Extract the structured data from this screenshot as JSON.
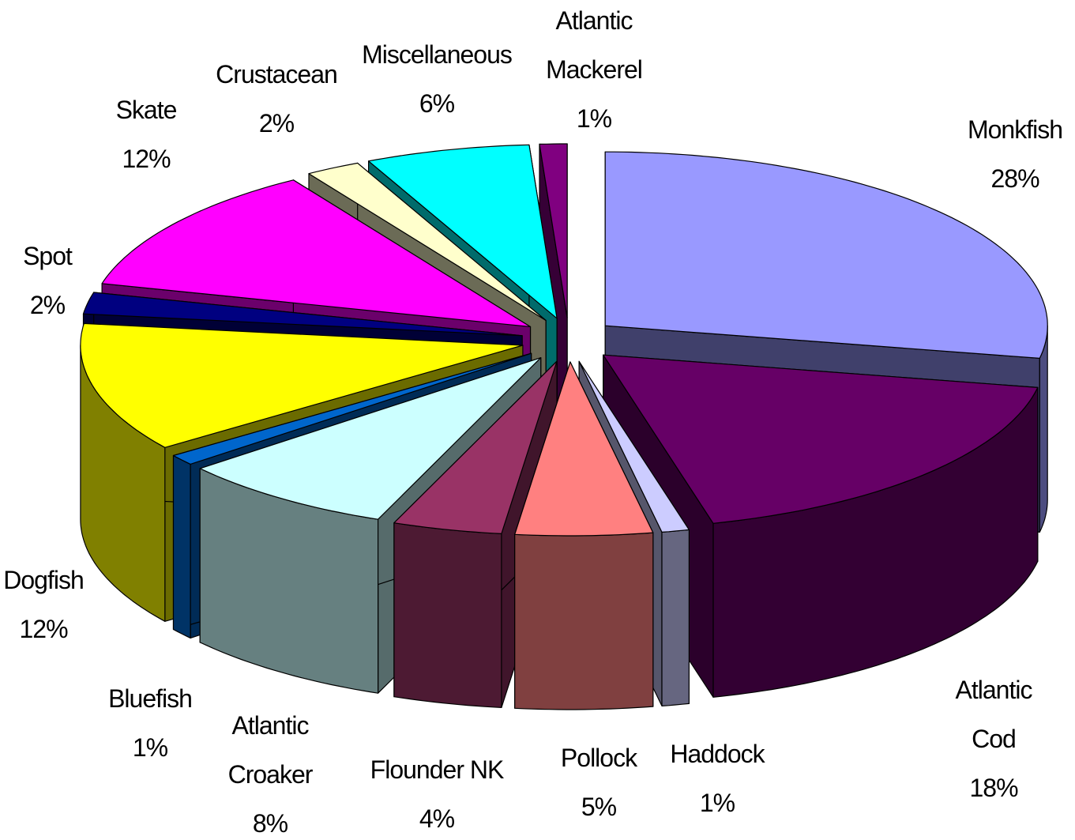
{
  "chart_data": {
    "type": "pie",
    "categories": [
      "Monkfish",
      "Atlantic Cod",
      "Haddock",
      "Pollock",
      "Flounder NK",
      "Atlantic Croaker",
      "Bluefish",
      "Dogfish",
      "Spot",
      "Skate",
      "Crustacean",
      "Miscellaneous",
      "Atlantic Mackerel"
    ],
    "values": [
      28,
      18,
      1,
      5,
      4,
      8,
      1,
      12,
      2,
      12,
      2,
      6,
      1
    ],
    "value_labels": [
      "28%",
      "18%",
      "1%",
      "5%",
      "4%",
      "8%",
      "1%",
      "12%",
      "2%",
      "12%",
      "2%",
      "6%",
      "1%"
    ],
    "colors": [
      "#9999ff",
      "#660066",
      "#ccccff",
      "#ff8080",
      "#993366",
      "#ccffff",
      "#0066cc",
      "#ffff00",
      "#000080",
      "#ff00ff",
      "#ffffcc",
      "#00ffff",
      "#800080"
    ]
  }
}
